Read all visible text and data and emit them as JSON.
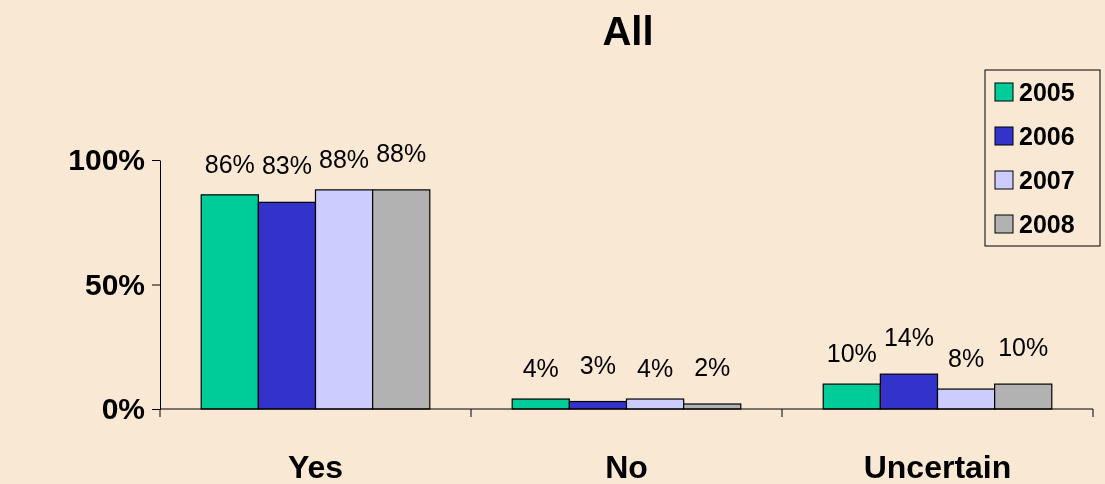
{
  "chart_data": {
    "type": "bar",
    "title": "All",
    "categories": [
      "Yes",
      "No",
      "Uncertain"
    ],
    "series": [
      {
        "name": "2005",
        "color": "#00cc99",
        "values": [
          86,
          4,
          10
        ],
        "value_labels": [
          "86%",
          "4%",
          "10%"
        ]
      },
      {
        "name": "2006",
        "color": "#3333cc",
        "values": [
          83,
          3,
          14
        ],
        "value_labels": [
          "83%",
          "3%",
          "14%"
        ]
      },
      {
        "name": "2007",
        "color": "#ccccff",
        "values": [
          88,
          4,
          8
        ],
        "value_labels": [
          "88%",
          "4%",
          "8%"
        ]
      },
      {
        "name": "2008",
        "color": "#b2b2b2",
        "values": [
          88,
          2,
          10
        ],
        "value_labels": [
          "88%",
          "2%",
          "10%"
        ]
      }
    ],
    "ylim": [
      0,
      100
    ],
    "yticks": [
      {
        "value": 0,
        "label": "0%"
      },
      {
        "value": 50,
        "label": "50%"
      },
      {
        "value": 100,
        "label": "100%"
      }
    ],
    "grid": false,
    "legend": "top right"
  }
}
